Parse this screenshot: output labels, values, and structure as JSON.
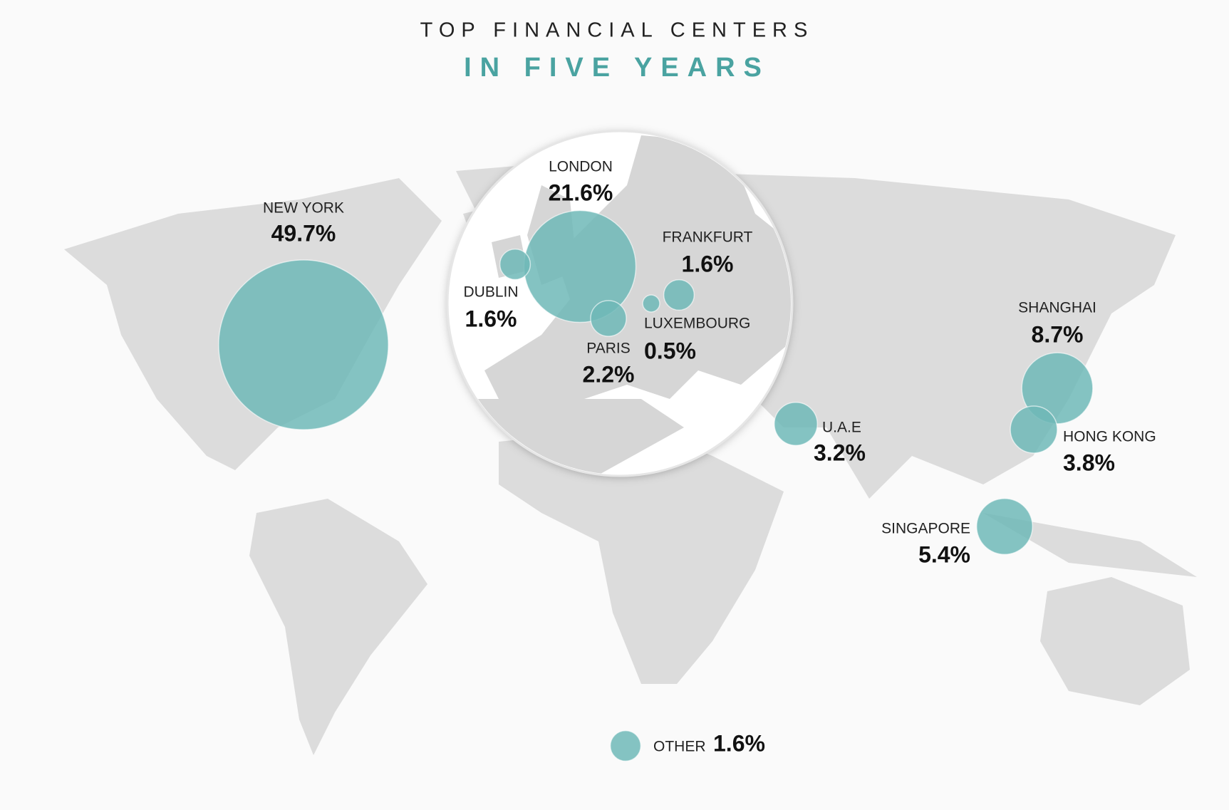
{
  "chart_data": {
    "type": "bubble_map",
    "title": "TOP FINANCIAL CENTERS",
    "subtitle": "IN FIVE YEARS",
    "categories": [
      "NEW YORK",
      "LONDON",
      "DUBLIN",
      "FRANKFURT",
      "LUXEMBOURG",
      "PARIS",
      "U.A.E",
      "SHANGHAI",
      "HONG KONG",
      "SINGAPORE",
      "OTHER"
    ],
    "values": [
      49.7,
      21.6,
      1.6,
      1.6,
      0.5,
      2.2,
      3.2,
      8.7,
      3.8,
      5.4,
      1.6
    ],
    "value_labels": [
      "49.7%",
      "21.6%",
      "1.6%",
      "1.6%",
      "0.5%",
      "2.2%",
      "3.2%",
      "8.7%",
      "3.8%",
      "5.4%",
      "1.6%"
    ],
    "color": "#6fb9b7"
  }
}
